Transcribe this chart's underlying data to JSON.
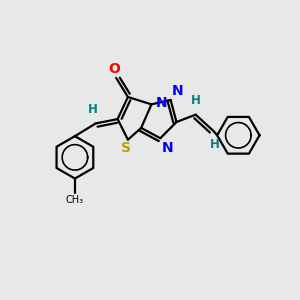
{
  "bg_color": "#e8e8e8",
  "atom_colors": {
    "C": "#000000",
    "N": "#0000ff",
    "O": "#ff0000",
    "S": "#b8a000",
    "H": "#008080"
  },
  "bond_color": "#000000",
  "figsize": [
    3.0,
    3.0
  ],
  "dpi": 100
}
